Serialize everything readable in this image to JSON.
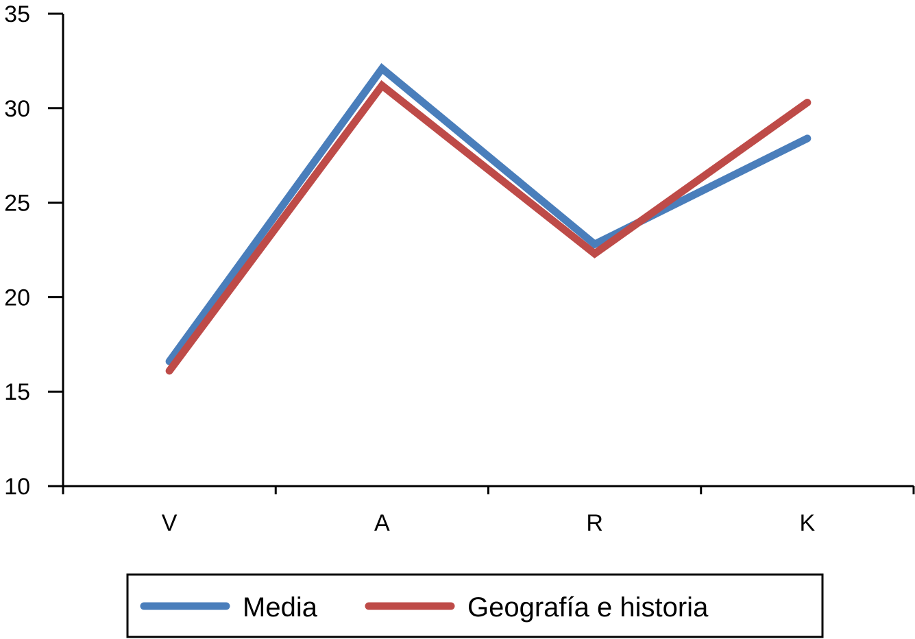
{
  "chart_data": {
    "type": "line",
    "categories": [
      "V",
      "A",
      "R",
      "K"
    ],
    "series": [
      {
        "name": "Media",
        "values": [
          16.6,
          32.1,
          22.8,
          28.4
        ],
        "color": "#4a7ebb"
      },
      {
        "name": "Geografía e historia",
        "values": [
          16.1,
          31.2,
          22.3,
          30.3
        ],
        "color": "#be4b48"
      }
    ],
    "ylim": [
      10,
      35
    ],
    "yticks": [
      10,
      15,
      20,
      25,
      30,
      35
    ],
    "grid": false,
    "legend_position": "bottom",
    "title": "",
    "xlabel": "",
    "ylabel": ""
  }
}
